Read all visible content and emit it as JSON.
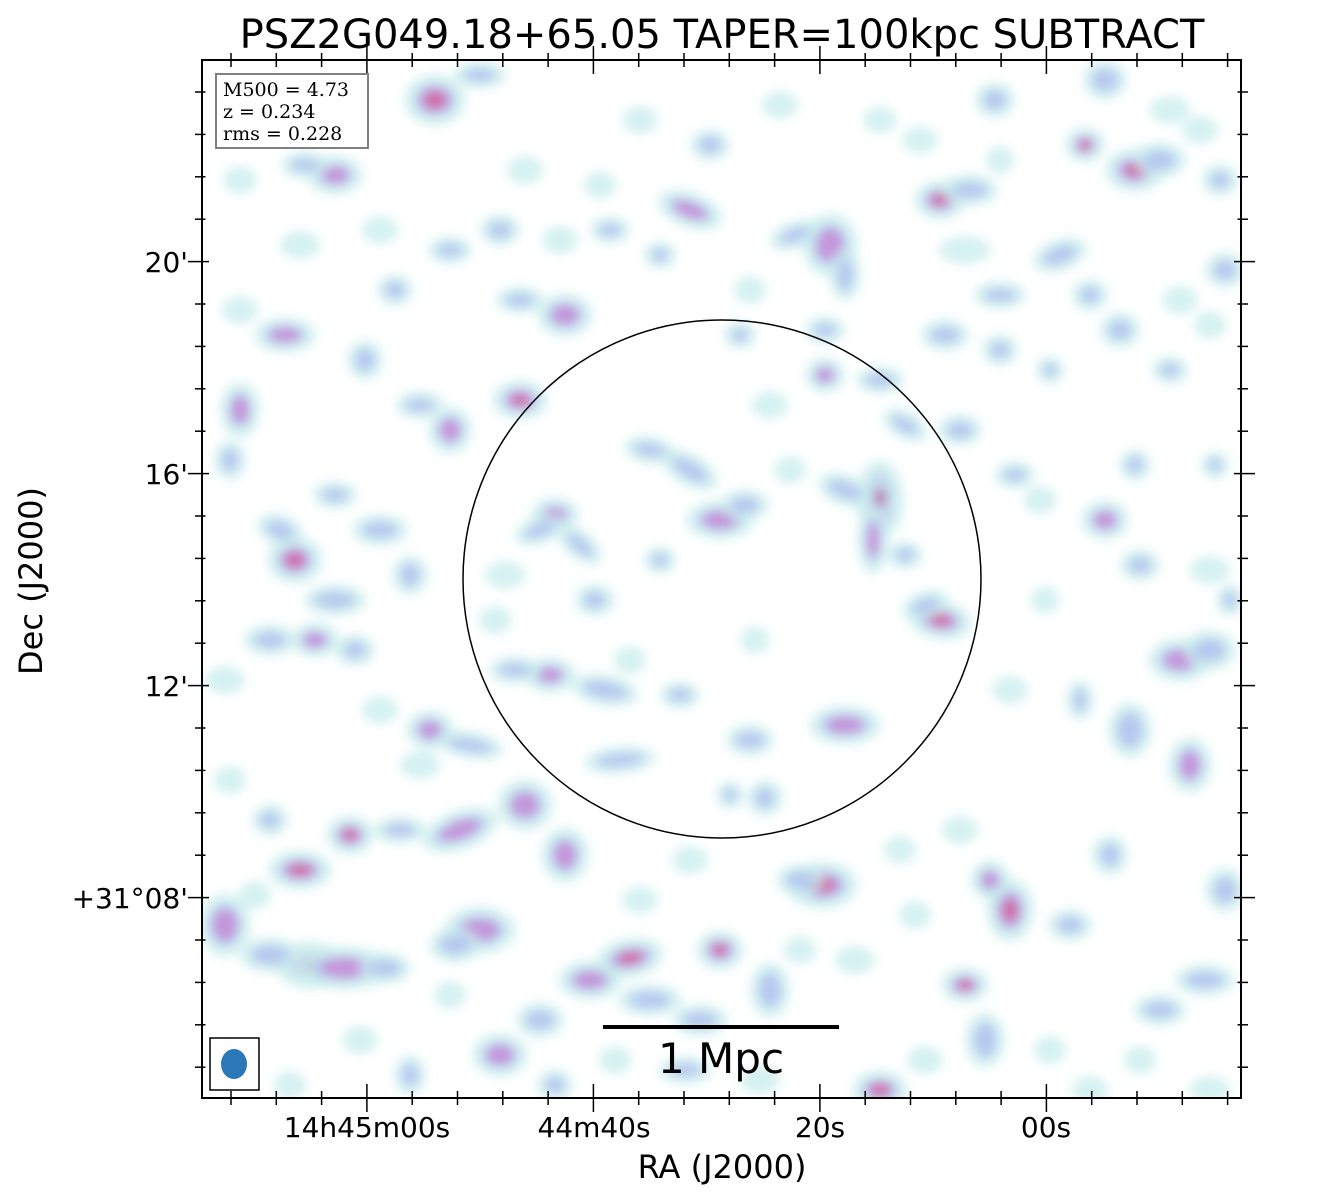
{
  "title": "PSZ2G049.18+65.05 TAPER=100kpc SUBTRACT",
  "axes": {
    "xlabel": "RA (J2000)",
    "ylabel": "Dec (J2000)",
    "x_ticks": [
      "14h45m00s",
      "44m40s",
      "20s",
      "00s"
    ],
    "y_ticks": [
      "20'",
      "16'",
      "12'",
      "+31°08'"
    ]
  },
  "info_box": {
    "line1": "M500 = 4.73",
    "line2": "z = 0.234",
    "line3": "rms = 0.228"
  },
  "scale_bar": {
    "label": "1 Mpc"
  },
  "colors": {
    "low": "#c8ecec",
    "mid_low": "#b4c4f0",
    "mid": "#c890d8",
    "high": "#d0689a",
    "peak": "#7a8a30",
    "beam": "#2b78b8",
    "circle": "#000000"
  },
  "image_description_free": true
}
